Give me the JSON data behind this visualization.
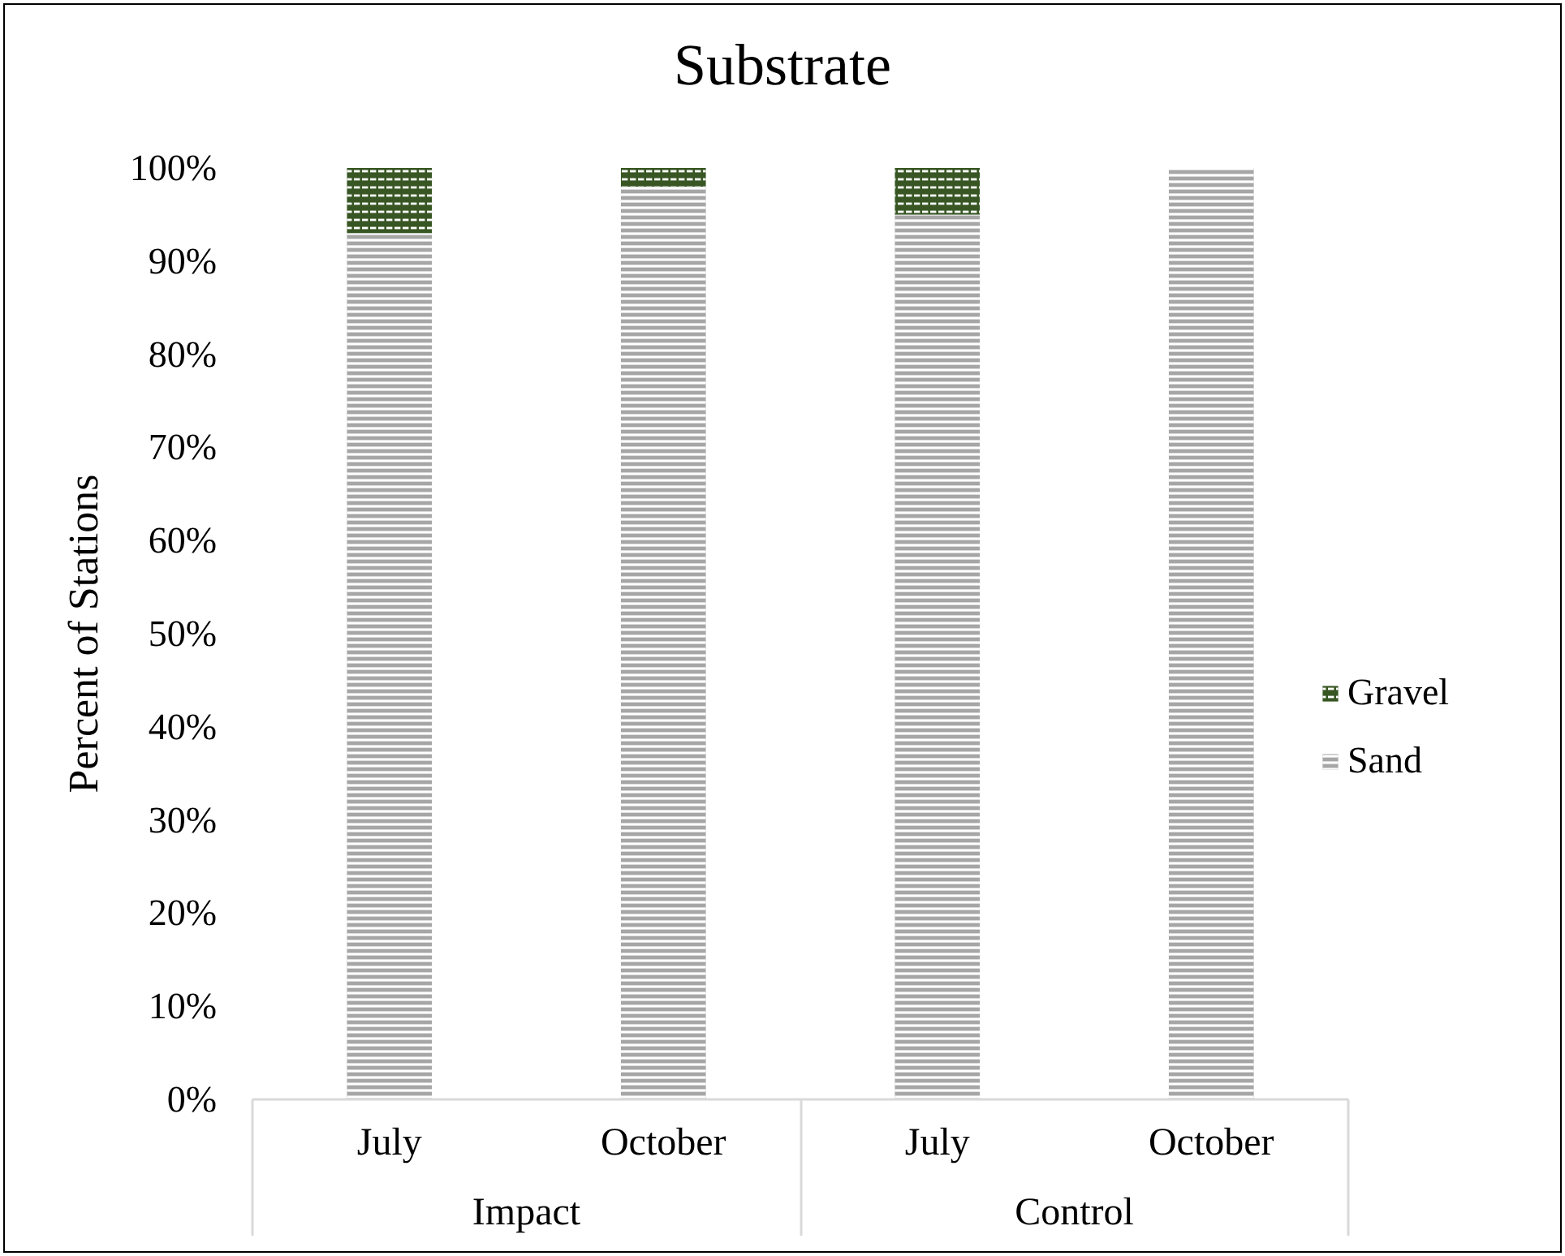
{
  "chart_data": {
    "type": "bar",
    "title": "Substrate",
    "ylabel": "Percent of Stations",
    "categories": [
      "July",
      "October",
      "July",
      "October"
    ],
    "annotations": [
      "Impact",
      "Control"
    ],
    "stacked": true,
    "legend": "right",
    "series": [
      {
        "name": "Sand",
        "color": "#a6a6a6",
        "values": [
          93,
          98,
          95,
          100
        ]
      },
      {
        "name": "Gravel",
        "color": "#375623",
        "values": [
          7,
          2,
          5,
          0
        ]
      }
    ],
    "ylim": [
      0,
      100
    ],
    "yticks": [
      {
        "value": 0,
        "label": "0%"
      },
      {
        "value": 10,
        "label": "10%"
      },
      {
        "value": 20,
        "label": "20%"
      },
      {
        "value": 30,
        "label": "30%"
      },
      {
        "value": 40,
        "label": "40%"
      },
      {
        "value": 50,
        "label": "50%"
      },
      {
        "value": 60,
        "label": "60%"
      },
      {
        "value": 70,
        "label": "70%"
      },
      {
        "value": 80,
        "label": "80%"
      },
      {
        "value": 90,
        "label": "90%"
      },
      {
        "value": 100,
        "label": "100%"
      }
    ]
  }
}
